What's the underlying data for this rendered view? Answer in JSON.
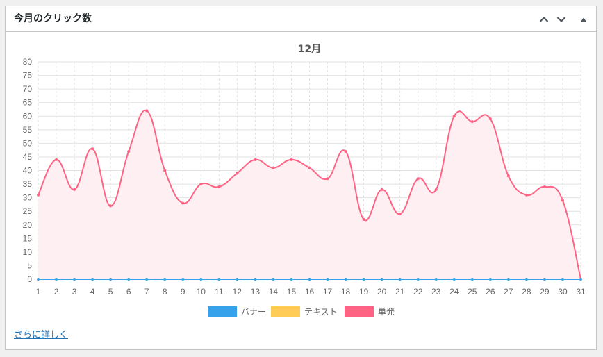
{
  "widget": {
    "title": "今月のクリック数",
    "move_up_icon": "chevron-up-icon",
    "move_down_icon": "chevron-down-icon",
    "toggle_icon": "triangle-up-icon",
    "more_link": "さらに詳しく"
  },
  "colors": {
    "banner": "#36a2eb",
    "text": "#ffcd56",
    "single": "#ff6384",
    "single_fill": "#fdeff2",
    "grid": "#e2e2e2",
    "tick": "#666666"
  },
  "chart_data": {
    "type": "line",
    "title": "12月",
    "x": [
      "1",
      "2",
      "3",
      "4",
      "5",
      "6",
      "7",
      "8",
      "9",
      "10",
      "11",
      "12",
      "13",
      "14",
      "15",
      "16",
      "17",
      "18",
      "19",
      "20",
      "21",
      "22",
      "23",
      "24",
      "25",
      "26",
      "27",
      "28",
      "29",
      "30",
      "31"
    ],
    "ylim": [
      0,
      80
    ],
    "yticks": [
      0,
      5,
      10,
      15,
      20,
      25,
      30,
      35,
      40,
      45,
      50,
      55,
      60,
      65,
      70,
      75,
      80
    ],
    "grid": true,
    "legend_position": "bottom",
    "series": [
      {
        "name": "バナー",
        "values": [
          0,
          0,
          0,
          0,
          0,
          0,
          0,
          0,
          0,
          0,
          0,
          0,
          0,
          0,
          0,
          0,
          0,
          0,
          0,
          0,
          0,
          0,
          0,
          0,
          0,
          0,
          0,
          0,
          0,
          0,
          0
        ]
      },
      {
        "name": "テキスト",
        "values": [
          0,
          0,
          0,
          0,
          0,
          0,
          0,
          0,
          0,
          0,
          0,
          0,
          0,
          0,
          0,
          0,
          0,
          0,
          0,
          0,
          0,
          0,
          0,
          0,
          0,
          0,
          0,
          0,
          0,
          0,
          0
        ]
      },
      {
        "name": "単発",
        "values": [
          31,
          44,
          33,
          48,
          27,
          47,
          62,
          40,
          28,
          35,
          34,
          39,
          44,
          41,
          44,
          41,
          37,
          47,
          22,
          33,
          24,
          37,
          33,
          60,
          58,
          59,
          38,
          31,
          34,
          29,
          0
        ]
      }
    ]
  }
}
